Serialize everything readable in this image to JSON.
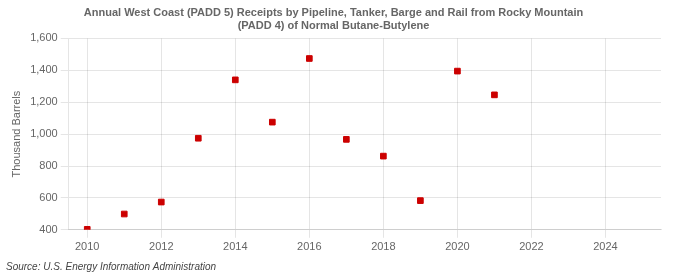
{
  "chart_data": {
    "type": "scatter",
    "title": "Annual West Coast (PADD 5) Receipts by Pipeline, Tanker, Barge and Rail from Rocky Mountain\n(PADD 4) of Normal Butane-Butylene",
    "ylabel": "Thousand Barrels",
    "annotations": [
      "Source: U.S. Energy Information Administration"
    ],
    "x": [
      2010,
      2011,
      2012,
      2013,
      2014,
      2015,
      2016,
      2017,
      2018,
      2019,
      2020,
      2021
    ],
    "values": [
      403,
      499,
      574,
      974,
      1340,
      1075,
      1474,
      967,
      862,
      583,
      1395,
      1246
    ],
    "color": "#cc0000",
    "marker": "square",
    "xlim": [
      2009.5,
      2025.5
    ],
    "xticks": [
      2010,
      2012,
      2014,
      2016,
      2018,
      2020,
      2022,
      2024
    ],
    "ylim": [
      400,
      1600
    ],
    "yticks": [
      400,
      600,
      800,
      {
        "value": 1000,
        "label": "1,000"
      },
      {
        "value": 1200,
        "label": "1,200"
      },
      {
        "value": 1400,
        "label": "1,400"
      },
      {
        "value": 1600,
        "label": "1,600"
      }
    ],
    "grid": true
  }
}
